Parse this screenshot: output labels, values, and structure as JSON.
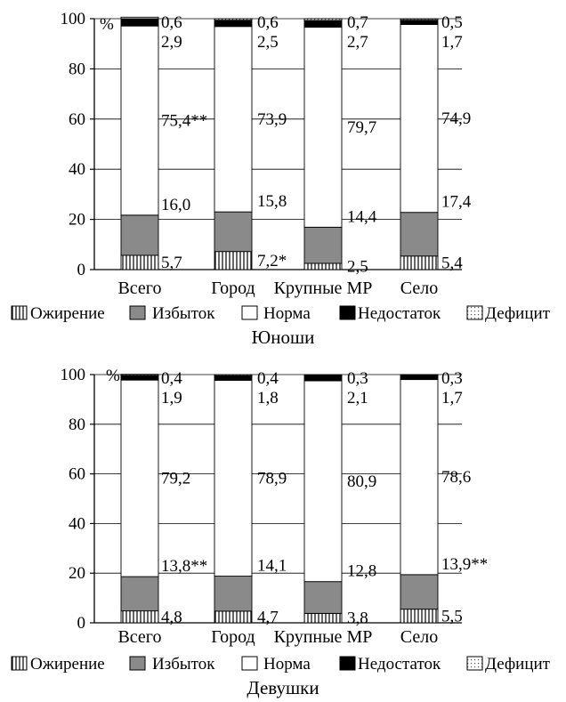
{
  "legend": [
    {
      "key": "obesity",
      "label": "Ожирение",
      "pattern": "vertical-hatch"
    },
    {
      "key": "excess",
      "label": "Избыток",
      "color": "#8a8a8a"
    },
    {
      "key": "normal",
      "label": "Норма",
      "color": "#ffffff"
    },
    {
      "key": "shortage",
      "label": "Недостаток",
      "color": "#000000"
    },
    {
      "key": "deficit",
      "label": "Дефицит",
      "pattern": "dots"
    }
  ],
  "chart_data": [
    {
      "type": "bar",
      "stacked": true,
      "title": "Юноши",
      "unit_label": "%",
      "ylim": [
        0,
        100
      ],
      "yticks": [
        "0",
        "20",
        "40",
        "60",
        "80",
        "100"
      ],
      "grid": true,
      "legend_position": "bottom",
      "categories": [
        "Всего",
        "Город",
        "Крупные МР",
        "Село"
      ],
      "series": [
        {
          "name": "Ожирение",
          "values": [
            5.7,
            7.2,
            2.5,
            5.4
          ],
          "labels": [
            "5,7",
            "7,2*",
            "2,5",
            "5,4"
          ]
        },
        {
          "name": "Избыток",
          "values": [
            16.0,
            15.8,
            14.4,
            17.4
          ],
          "labels": [
            "16,0",
            "15,8",
            "14,4",
            "17,4"
          ]
        },
        {
          "name": "Норма",
          "values": [
            75.4,
            73.9,
            79.7,
            74.9
          ],
          "labels": [
            "75,4**",
            "73,9",
            "79,7",
            "74,9"
          ]
        },
        {
          "name": "Недостаток",
          "values": [
            2.9,
            2.5,
            2.7,
            1.7
          ],
          "labels": [
            "2,9",
            "2,5",
            "2,7",
            "1,7"
          ]
        },
        {
          "name": "Дефицит",
          "values": [
            0.6,
            0.6,
            0.7,
            0.5
          ],
          "labels": [
            "0,6",
            "0,6",
            "0,7",
            "0,5"
          ]
        }
      ]
    },
    {
      "type": "bar",
      "stacked": true,
      "title": "Девушки",
      "unit_label": "%",
      "ylim": [
        0,
        100
      ],
      "yticks": [
        "0",
        "20",
        "40",
        "60",
        "80",
        "100"
      ],
      "grid": true,
      "legend_position": "bottom",
      "categories": [
        "Всего",
        "Город",
        "Крупные МР",
        "Село"
      ],
      "series": [
        {
          "name": "Ожирение",
          "values": [
            4.8,
            4.7,
            3.8,
            5.5
          ],
          "labels": [
            "4,8",
            "4,7",
            "3,8",
            "5,5"
          ]
        },
        {
          "name": "Избыток",
          "values": [
            13.8,
            14.1,
            12.8,
            13.9
          ],
          "labels": [
            "13,8**",
            "14,1",
            "12,8",
            "13,9**"
          ]
        },
        {
          "name": "Норма",
          "values": [
            79.2,
            78.9,
            80.9,
            78.6
          ],
          "labels": [
            "79,2",
            "78,9",
            "80,9",
            "78,6"
          ]
        },
        {
          "name": "Недостаток",
          "values": [
            1.9,
            1.8,
            2.1,
            1.7
          ],
          "labels": [
            "1,9",
            "1,8",
            "2,1",
            "1,7"
          ]
        },
        {
          "name": "Дефицит",
          "values": [
            0.4,
            0.4,
            0.3,
            0.3
          ],
          "labels": [
            "0,4",
            "0,4",
            "0,3",
            "0,3"
          ]
        }
      ]
    }
  ]
}
